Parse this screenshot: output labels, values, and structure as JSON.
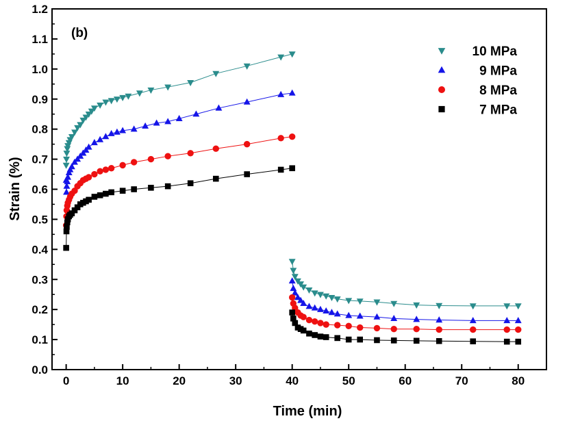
{
  "chart_data": {
    "type": "scatter",
    "panel_label": "(b)",
    "xlabel": "Time (min)",
    "ylabel": "Strain (%)",
    "xlim": [
      -2.5,
      85
    ],
    "ylim": [
      0.0,
      1.2
    ],
    "xticks": [
      0,
      10,
      20,
      30,
      40,
      50,
      60,
      70,
      80
    ],
    "yticks": [
      0.0,
      0.1,
      0.2,
      0.3,
      0.4,
      0.5,
      0.6,
      0.7,
      0.8,
      0.9,
      1.0,
      1.1,
      1.2
    ],
    "ytick_labels": [
      "0.0",
      "0.1",
      "0.2",
      "0.3",
      "0.4",
      "0.5",
      "0.6",
      "0.7",
      "0.8",
      "0.9",
      "1.0",
      "1.1",
      "1.2"
    ],
    "legend_position": "top-right",
    "series": [
      {
        "name": "10 MPa",
        "color": "#2a8c8c",
        "marker": "triangle-down",
        "loading": [
          [
            0,
            0.68
          ],
          [
            0.05,
            0.7
          ],
          [
            0.1,
            0.72
          ],
          [
            0.2,
            0.735
          ],
          [
            0.3,
            0.745
          ],
          [
            0.5,
            0.755
          ],
          [
            0.7,
            0.765
          ],
          [
            1.0,
            0.775
          ],
          [
            1.5,
            0.79
          ],
          [
            2,
            0.805
          ],
          [
            2.5,
            0.815
          ],
          [
            3,
            0.83
          ],
          [
            3.5,
            0.84
          ],
          [
            4,
            0.85
          ],
          [
            4.5,
            0.86
          ],
          [
            5,
            0.87
          ],
          [
            6,
            0.88
          ],
          [
            7,
            0.89
          ],
          [
            8,
            0.895
          ],
          [
            9,
            0.9
          ],
          [
            10,
            0.905
          ],
          [
            11,
            0.91
          ],
          [
            13,
            0.92
          ],
          [
            15,
            0.93
          ],
          [
            18,
            0.94
          ],
          [
            22,
            0.955
          ],
          [
            26.5,
            0.985
          ],
          [
            32,
            1.01
          ],
          [
            38,
            1.04
          ],
          [
            40,
            1.05
          ]
        ],
        "unloading": [
          [
            40,
            0.36
          ],
          [
            40.2,
            0.33
          ],
          [
            40.5,
            0.31
          ],
          [
            41,
            0.295
          ],
          [
            41.5,
            0.285
          ],
          [
            42,
            0.275
          ],
          [
            43,
            0.265
          ],
          [
            44,
            0.255
          ],
          [
            45,
            0.25
          ],
          [
            46,
            0.245
          ],
          [
            47,
            0.24
          ],
          [
            48,
            0.235
          ],
          [
            50,
            0.23
          ],
          [
            52,
            0.228
          ],
          [
            55,
            0.225
          ],
          [
            58,
            0.22
          ],
          [
            62,
            0.215
          ],
          [
            66,
            0.213
          ],
          [
            72,
            0.212
          ],
          [
            78,
            0.212
          ],
          [
            80,
            0.212
          ]
        ]
      },
      {
        "name": "9 MPa",
        "color": "#1515e8",
        "marker": "triangle-up",
        "loading": [
          [
            0,
            0.63
          ],
          [
            0.05,
            0.59
          ],
          [
            0.1,
            0.61
          ],
          [
            0.2,
            0.625
          ],
          [
            0.3,
            0.64
          ],
          [
            0.5,
            0.655
          ],
          [
            0.7,
            0.665
          ],
          [
            1,
            0.675
          ],
          [
            1.5,
            0.69
          ],
          [
            2,
            0.7
          ],
          [
            2.5,
            0.71
          ],
          [
            3,
            0.72
          ],
          [
            3.5,
            0.73
          ],
          [
            4,
            0.74
          ],
          [
            5,
            0.755
          ],
          [
            6,
            0.765
          ],
          [
            7,
            0.775
          ],
          [
            8,
            0.785
          ],
          [
            9,
            0.79
          ],
          [
            10,
            0.795
          ],
          [
            12,
            0.8
          ],
          [
            14,
            0.81
          ],
          [
            16,
            0.82
          ],
          [
            18,
            0.825
          ],
          [
            20,
            0.835
          ],
          [
            23,
            0.85
          ],
          [
            27,
            0.87
          ],
          [
            32,
            0.89
          ],
          [
            38,
            0.915
          ],
          [
            40,
            0.92
          ]
        ],
        "unloading": [
          [
            40,
            0.295
          ],
          [
            40.2,
            0.27
          ],
          [
            40.5,
            0.255
          ],
          [
            41,
            0.24
          ],
          [
            41.5,
            0.23
          ],
          [
            42,
            0.22
          ],
          [
            43,
            0.21
          ],
          [
            44,
            0.205
          ],
          [
            45,
            0.2
          ],
          [
            46,
            0.195
          ],
          [
            47,
            0.19
          ],
          [
            48,
            0.185
          ],
          [
            50,
            0.18
          ],
          [
            52,
            0.178
          ],
          [
            55,
            0.175
          ],
          [
            58,
            0.17
          ],
          [
            62,
            0.167
          ],
          [
            66,
            0.165
          ],
          [
            72,
            0.163
          ],
          [
            78,
            0.163
          ],
          [
            80,
            0.163
          ]
        ]
      },
      {
        "name": "8 MPa",
        "color": "#ee1111",
        "marker": "circle",
        "loading": [
          [
            0,
            0.48
          ],
          [
            0.05,
            0.51
          ],
          [
            0.1,
            0.53
          ],
          [
            0.2,
            0.545
          ],
          [
            0.3,
            0.555
          ],
          [
            0.5,
            0.565
          ],
          [
            0.7,
            0.575
          ],
          [
            1,
            0.585
          ],
          [
            1.5,
            0.595
          ],
          [
            2,
            0.61
          ],
          [
            2.5,
            0.62
          ],
          [
            3,
            0.63
          ],
          [
            3.5,
            0.635
          ],
          [
            4,
            0.64
          ],
          [
            5,
            0.65
          ],
          [
            6,
            0.66
          ],
          [
            7,
            0.665
          ],
          [
            8,
            0.67
          ],
          [
            10,
            0.68
          ],
          [
            12,
            0.69
          ],
          [
            15,
            0.7
          ],
          [
            18,
            0.71
          ],
          [
            22,
            0.72
          ],
          [
            26.5,
            0.735
          ],
          [
            32,
            0.75
          ],
          [
            38,
            0.77
          ],
          [
            40,
            0.775
          ]
        ],
        "unloading": [
          [
            40,
            0.24
          ],
          [
            40.2,
            0.22
          ],
          [
            40.5,
            0.205
          ],
          [
            41,
            0.19
          ],
          [
            41.5,
            0.18
          ],
          [
            42,
            0.175
          ],
          [
            43,
            0.165
          ],
          [
            44,
            0.16
          ],
          [
            45,
            0.155
          ],
          [
            46,
            0.15
          ],
          [
            48,
            0.148
          ],
          [
            50,
            0.145
          ],
          [
            52,
            0.14
          ],
          [
            55,
            0.138
          ],
          [
            58,
            0.135
          ],
          [
            62,
            0.135
          ],
          [
            66,
            0.133
          ],
          [
            72,
            0.133
          ],
          [
            78,
            0.133
          ],
          [
            80,
            0.133
          ]
        ]
      },
      {
        "name": "7 MPa",
        "color": "#000000",
        "marker": "square",
        "loading": [
          [
            0,
            0.405
          ],
          [
            0.05,
            0.46
          ],
          [
            0.1,
            0.475
          ],
          [
            0.2,
            0.49
          ],
          [
            0.3,
            0.5
          ],
          [
            0.5,
            0.51
          ],
          [
            0.7,
            0.515
          ],
          [
            1,
            0.52
          ],
          [
            1.5,
            0.53
          ],
          [
            2,
            0.54
          ],
          [
            2.5,
            0.55
          ],
          [
            3,
            0.555
          ],
          [
            3.5,
            0.56
          ],
          [
            4,
            0.565
          ],
          [
            5,
            0.575
          ],
          [
            6,
            0.58
          ],
          [
            7,
            0.585
          ],
          [
            8,
            0.59
          ],
          [
            10,
            0.595
          ],
          [
            12,
            0.6
          ],
          [
            15,
            0.605
          ],
          [
            18,
            0.61
          ],
          [
            22,
            0.62
          ],
          [
            26.5,
            0.635
          ],
          [
            32,
            0.65
          ],
          [
            38,
            0.665
          ],
          [
            40,
            0.67
          ]
        ],
        "unloading": [
          [
            40,
            0.19
          ],
          [
            40.2,
            0.17
          ],
          [
            40.5,
            0.155
          ],
          [
            41,
            0.14
          ],
          [
            41.5,
            0.135
          ],
          [
            42,
            0.13
          ],
          [
            43,
            0.12
          ],
          [
            44,
            0.115
          ],
          [
            45,
            0.11
          ],
          [
            46,
            0.108
          ],
          [
            48,
            0.105
          ],
          [
            50,
            0.1
          ],
          [
            52,
            0.1
          ],
          [
            55,
            0.098
          ],
          [
            58,
            0.097
          ],
          [
            62,
            0.096
          ],
          [
            66,
            0.095
          ],
          [
            72,
            0.094
          ],
          [
            78,
            0.093
          ],
          [
            80,
            0.093
          ]
        ]
      }
    ]
  }
}
